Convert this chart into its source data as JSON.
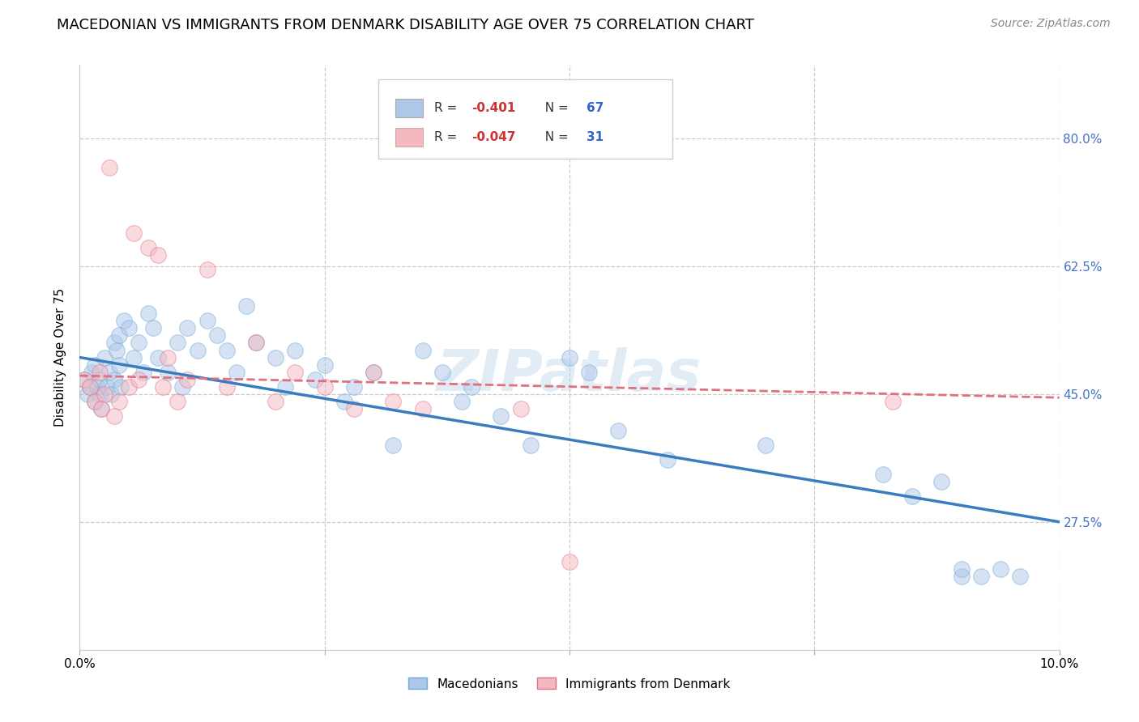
{
  "title": "MACEDONIAN VS IMMIGRANTS FROM DENMARK DISABILITY AGE OVER 75 CORRELATION CHART",
  "source": "Source: ZipAtlas.com",
  "ylabel": "Disability Age Over 75",
  "xlim": [
    0.0,
    10.0
  ],
  "ylim": [
    10.0,
    90.0
  ],
  "yticks": [
    27.5,
    45.0,
    62.5,
    80.0
  ],
  "xticks": [
    0.0,
    2.5,
    5.0,
    7.5,
    10.0
  ],
  "ytick_labels": [
    "27.5%",
    "45.0%",
    "62.5%",
    "80.0%"
  ],
  "legend_entries": [
    {
      "label": "Macedonians",
      "color": "#aec6e8",
      "edge": "#6aaed6",
      "R": "-0.401",
      "N": "67"
    },
    {
      "label": "Immigrants from Denmark",
      "color": "#f4b8c1",
      "edge": "#e07090",
      "R": "-0.047",
      "N": "31"
    }
  ],
  "blue_scatter_x": [
    0.05,
    0.08,
    0.1,
    0.12,
    0.15,
    0.15,
    0.18,
    0.2,
    0.2,
    0.22,
    0.25,
    0.28,
    0.3,
    0.32,
    0.35,
    0.35,
    0.38,
    0.4,
    0.4,
    0.42,
    0.45,
    0.5,
    0.55,
    0.6,
    0.65,
    0.7,
    0.75,
    0.8,
    0.9,
    1.0,
    1.05,
    1.1,
    1.2,
    1.3,
    1.4,
    1.5,
    1.6,
    1.7,
    1.8,
    2.0,
    2.1,
    2.2,
    2.4,
    2.5,
    2.7,
    2.8,
    3.0,
    3.2,
    3.5,
    3.7,
    3.9,
    4.0,
    4.3,
    4.6,
    5.0,
    5.2,
    5.5,
    6.0,
    7.0,
    8.2,
    8.5,
    8.8,
    9.0,
    9.0,
    9.2,
    9.4,
    9.6
  ],
  "blue_scatter_y": [
    47,
    45,
    46,
    48,
    44,
    49,
    46,
    47,
    45,
    43,
    50,
    46,
    48,
    45,
    52,
    47,
    51,
    53,
    49,
    46,
    55,
    54,
    50,
    52,
    48,
    56,
    54,
    50,
    48,
    52,
    46,
    54,
    51,
    55,
    53,
    51,
    48,
    57,
    52,
    50,
    46,
    51,
    47,
    49,
    44,
    46,
    48,
    38,
    51,
    48,
    44,
    46,
    42,
    38,
    50,
    48,
    40,
    36,
    38,
    34,
    31,
    33,
    20,
    21,
    20,
    21,
    20
  ],
  "pink_scatter_x": [
    0.05,
    0.1,
    0.15,
    0.2,
    0.22,
    0.25,
    0.3,
    0.35,
    0.4,
    0.5,
    0.55,
    0.6,
    0.7,
    0.8,
    0.85,
    0.9,
    1.0,
    1.1,
    1.3,
    1.5,
    1.8,
    2.0,
    2.2,
    2.5,
    2.8,
    3.0,
    3.2,
    3.5,
    4.5,
    5.0,
    8.3
  ],
  "pink_scatter_y": [
    47,
    46,
    44,
    48,
    43,
    45,
    76,
    42,
    44,
    46,
    67,
    47,
    65,
    64,
    46,
    50,
    44,
    47,
    62,
    46,
    52,
    44,
    48,
    46,
    43,
    48,
    44,
    43,
    43,
    22,
    44
  ],
  "blue_line_x": [
    0.0,
    10.0
  ],
  "blue_line_y": [
    50.0,
    27.5
  ],
  "pink_line_x": [
    0.0,
    10.0
  ],
  "pink_line_y": [
    47.5,
    44.5
  ],
  "scatter_size": 200,
  "scatter_alpha": 0.5,
  "blue_line_color": "#3a7dbf",
  "pink_line_color": "#e07080",
  "grid_color": "#cccccc",
  "background_color": "#ffffff",
  "watermark": "ZIPatlas",
  "title_fontsize": 13,
  "axis_label_fontsize": 11,
  "tick_fontsize": 11,
  "source_fontsize": 10,
  "right_tick_color": "#4472c4"
}
